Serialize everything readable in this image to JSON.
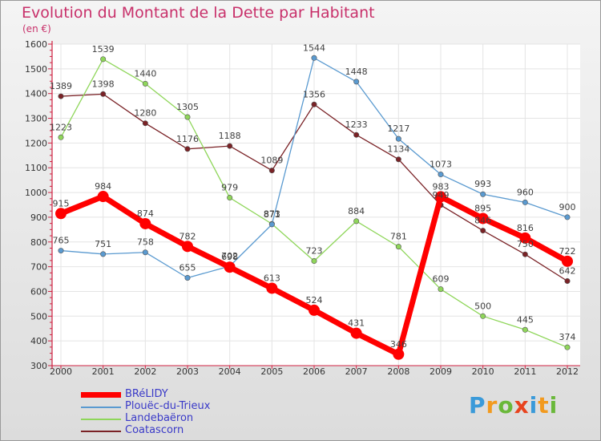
{
  "title": "Evolution du Montant de la Dette par Habitant",
  "unit": "(en €)",
  "logo": {
    "letters": [
      "P",
      "r",
      "o",
      "x",
      "i",
      "t",
      "i"
    ],
    "colors": [
      "#3a9ad9",
      "#f29a1e",
      "#6ab83a",
      "#e8431e",
      "#3a9ad9",
      "#f29a1e",
      "#6ab83a"
    ]
  },
  "chart_data": {
    "type": "line",
    "title": "Evolution du Montant de la Dette par Habitant",
    "ylabel": "(en €)",
    "xlabel": "",
    "x": [
      "2000",
      "2001",
      "2002",
      "2003",
      "2004",
      "2005",
      "2006",
      "2007",
      "2008",
      "2009",
      "2010",
      "2011",
      "2012"
    ],
    "yticks": [
      300,
      400,
      500,
      600,
      700,
      800,
      900,
      1000,
      1100,
      1200,
      1300,
      1400,
      1500,
      1600
    ],
    "ylim": [
      300,
      1600
    ],
    "grid": true,
    "legend": "bottom-left",
    "series": [
      {
        "name": "Coatascorn",
        "color": "#7a2226",
        "values": [
          1389,
          1398,
          1280,
          1176,
          1188,
          1089,
          1356,
          1233,
          1134,
          949,
          846,
          750,
          642
        ],
        "labels": [
          "1389",
          "1398",
          "1280",
          "1176",
          "1188",
          "1089",
          "1356",
          "1233",
          "1134",
          "949",
          "846",
          "750",
          "642"
        ]
      },
      {
        "name": "Landebaëron",
        "color": "#8fd65a",
        "values": [
          1223,
          1539,
          1440,
          1305,
          979,
          873,
          723,
          884,
          781,
          609,
          500,
          445,
          374
        ],
        "labels": [
          "1223",
          "1539",
          "1440",
          "1305",
          "979",
          "873",
          "723",
          "884",
          "781",
          "609",
          "500",
          "445",
          "374"
        ]
      },
      {
        "name": "Plouëc-du-Trieux",
        "color": "#5a9ad0",
        "values": [
          765,
          751,
          758,
          655,
          702,
          871,
          1544,
          1448,
          1217,
          1073,
          993,
          960,
          900
        ],
        "labels": [
          "765",
          "751",
          "758",
          "655",
          "702",
          "871",
          "1544",
          "1448",
          "1217",
          "1073",
          "993",
          "960",
          "900"
        ]
      },
      {
        "name": "BRéLIDY",
        "color": "#ff0000",
        "values": [
          915,
          984,
          874,
          782,
          698,
          613,
          524,
          431,
          346,
          983,
          895,
          816,
          722
        ],
        "labels": [
          "915",
          "984",
          "874",
          "782",
          "698",
          "613",
          "524",
          "431",
          "346",
          "983",
          "895",
          "816",
          "722"
        ]
      }
    ]
  }
}
